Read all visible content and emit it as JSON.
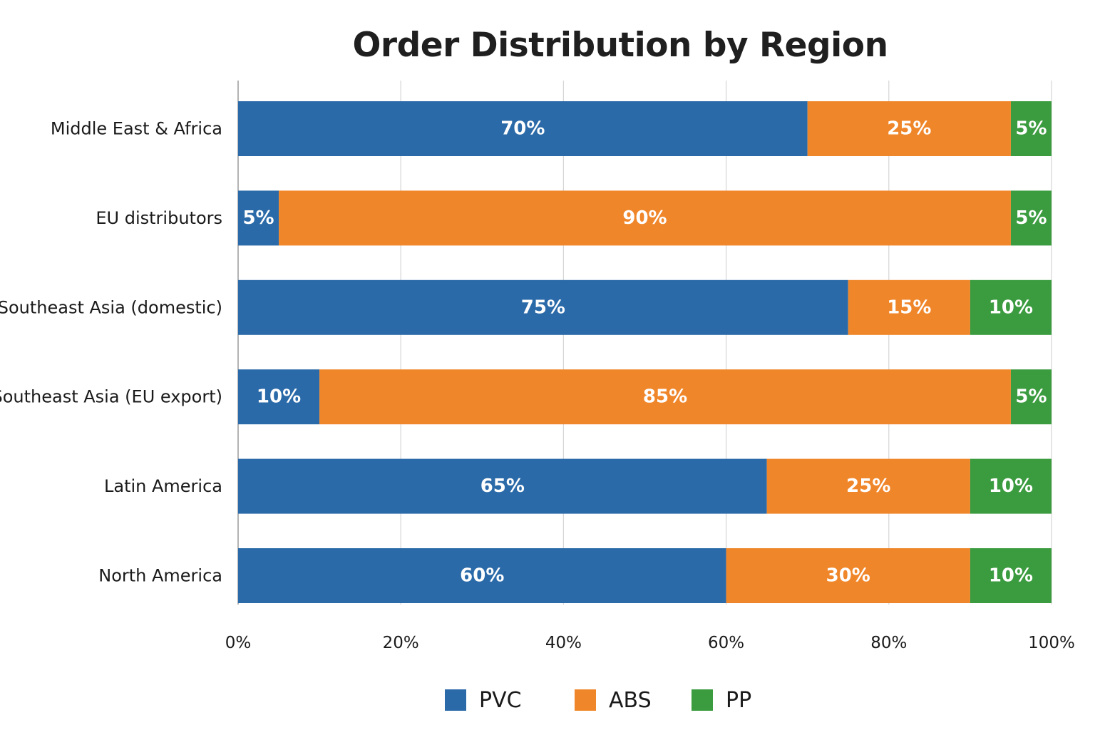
{
  "chart_data": {
    "type": "bar",
    "orientation": "horizontal",
    "stacked": true,
    "title": "Order Distribution by Region",
    "xlabel": "",
    "ylabel": "",
    "xlim": [
      0,
      100
    ],
    "x_ticks": [
      "0%",
      "20%",
      "40%",
      "60%",
      "80%",
      "100%"
    ],
    "x_tick_values": [
      0,
      20,
      40,
      60,
      80,
      100
    ],
    "grid": "vertical",
    "legend_position": "bottom-center",
    "categories": [
      "Middle East & Africa",
      "EU distributors",
      "Southeast Asia (domestic)",
      "Southeast Asia (EU export)",
      "Latin America",
      "North America"
    ],
    "series": [
      {
        "name": "PVC",
        "color": "#2b6aa8",
        "values": [
          70,
          5,
          75,
          10,
          65,
          60
        ]
      },
      {
        "name": "ABS",
        "color": "#f0862a",
        "values": [
          25,
          90,
          15,
          85,
          25,
          30
        ]
      },
      {
        "name": "PP",
        "color": "#3b9b3f",
        "values": [
          5,
          5,
          10,
          5,
          10,
          10
        ]
      }
    ]
  },
  "legend": {
    "items": [
      {
        "label": "PVC",
        "color": "#2b6aa8"
      },
      {
        "label": "ABS",
        "color": "#f0862a"
      },
      {
        "label": "PP",
        "color": "#3b9b3f"
      }
    ]
  }
}
